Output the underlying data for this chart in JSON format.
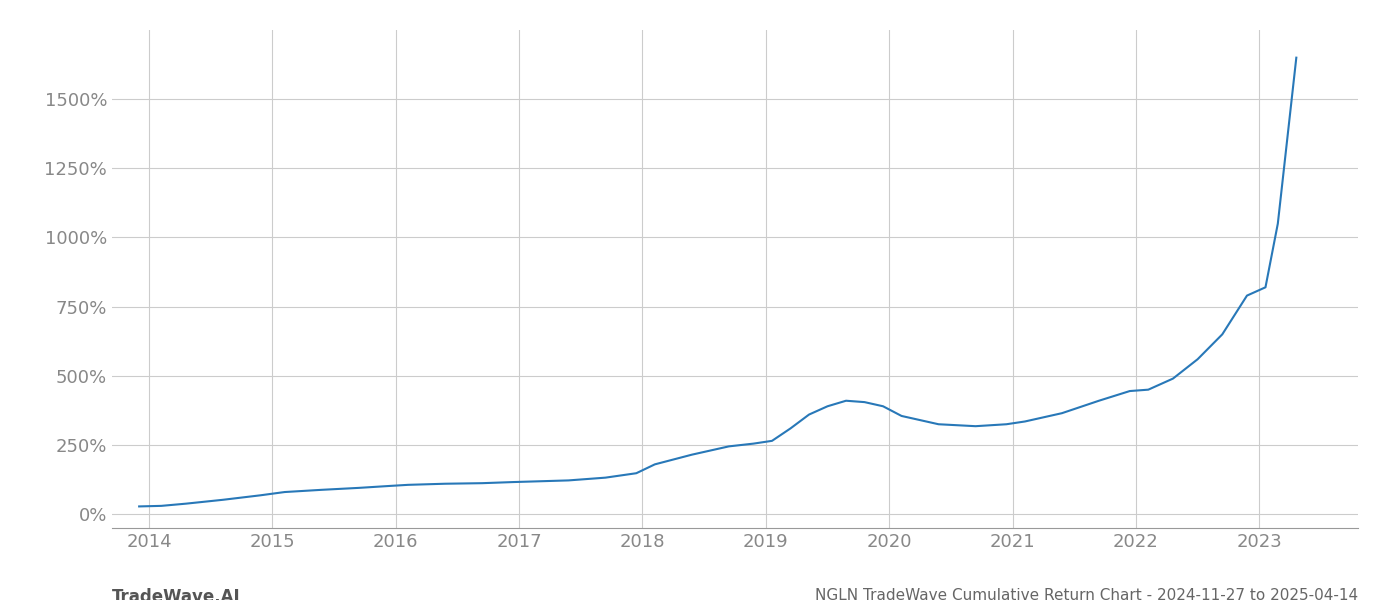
{
  "title": "NGLN TradeWave Cumulative Return Chart - 2024-11-27 to 2025-04-14",
  "watermark": "TradeWave.AI",
  "line_color": "#2878b8",
  "background_color": "#ffffff",
  "grid_color": "#cccccc",
  "x_tick_color": "#888888",
  "y_tick_color": "#888888",
  "x_ticks": [
    2014,
    2015,
    2016,
    2017,
    2018,
    2019,
    2020,
    2021,
    2022,
    2023
  ],
  "y_ticks": [
    0,
    250,
    500,
    750,
    1000,
    1250,
    1500
  ],
  "xlim": [
    2013.7,
    2023.8
  ],
  "ylim": [
    -50,
    1750
  ],
  "data_x": [
    2013.92,
    2014.1,
    2014.3,
    2014.6,
    2014.9,
    2015.1,
    2015.4,
    2015.7,
    2015.95,
    2016.1,
    2016.4,
    2016.7,
    2016.95,
    2017.1,
    2017.4,
    2017.7,
    2017.95,
    2018.1,
    2018.4,
    2018.55,
    2018.7,
    2018.9,
    2019.05,
    2019.2,
    2019.35,
    2019.5,
    2019.65,
    2019.8,
    2019.95,
    2020.1,
    2020.4,
    2020.7,
    2020.95,
    2021.1,
    2021.4,
    2021.7,
    2021.95,
    2022.1,
    2022.3,
    2022.5,
    2022.7,
    2022.9,
    2023.05,
    2023.15,
    2023.3
  ],
  "data_y": [
    28,
    30,
    38,
    52,
    68,
    80,
    88,
    95,
    102,
    106,
    110,
    112,
    116,
    118,
    122,
    132,
    148,
    180,
    215,
    230,
    245,
    255,
    265,
    310,
    360,
    390,
    410,
    405,
    390,
    355,
    325,
    318,
    325,
    335,
    365,
    410,
    445,
    450,
    490,
    560,
    650,
    790,
    820,
    1050,
    1650
  ],
  "line_width": 1.5,
  "title_fontsize": 11,
  "tick_fontsize": 13,
  "watermark_fontsize": 12
}
